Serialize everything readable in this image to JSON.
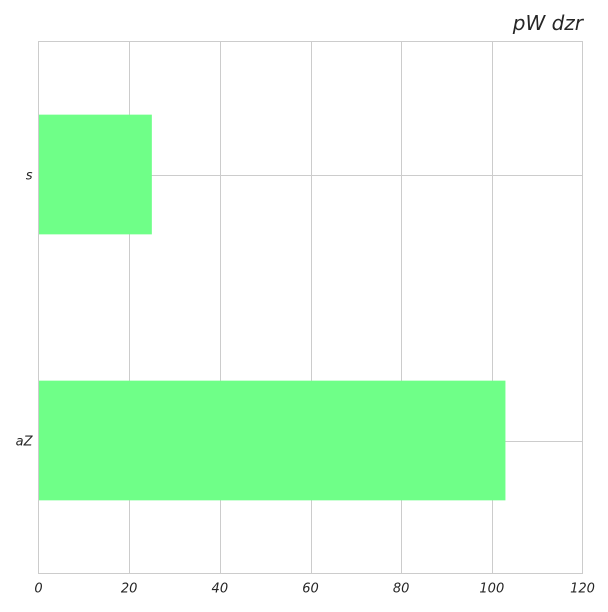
{
  "chart_data": {
    "type": "bar",
    "orientation": "horizontal",
    "title": "pW dzr",
    "xlabel": "",
    "ylabel": "",
    "categories": [
      "s",
      "aZ"
    ],
    "values": [
      25,
      103
    ],
    "xlim": [
      0,
      120
    ],
    "xticks": [
      0,
      20,
      40,
      60,
      80,
      100,
      120
    ],
    "grid": true,
    "bar_color": "#6fff88",
    "grid_color": "#cccccc"
  }
}
